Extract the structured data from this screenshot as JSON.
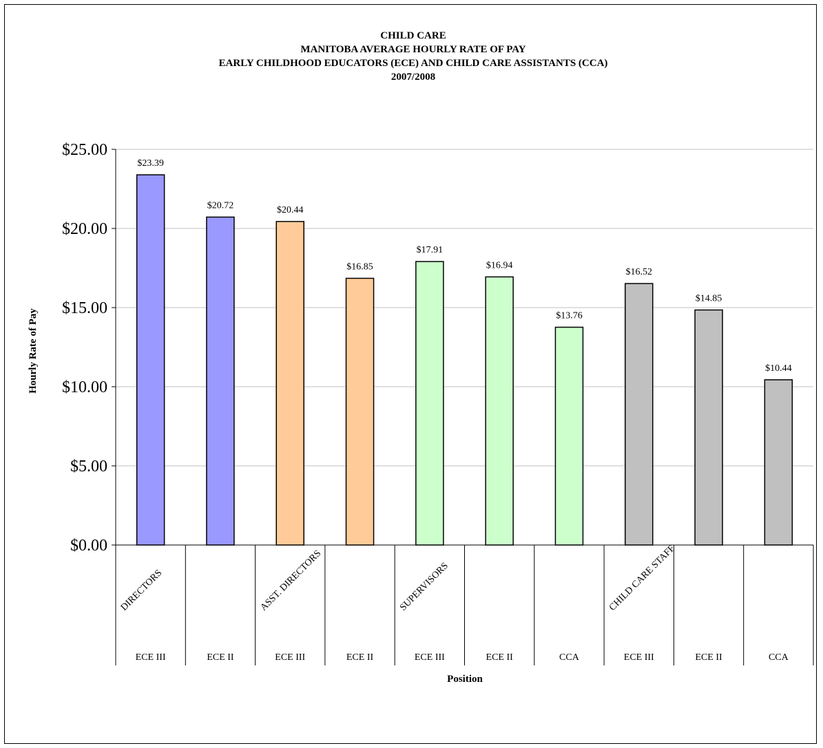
{
  "chart_data": {
    "type": "bar",
    "title_lines": [
      "CHILD CARE",
      "MANITOBA AVERAGE HOURLY RATE OF PAY",
      "EARLY CHILDHOOD EDUCATORS (ECE) AND CHILD CARE ASSISTANTS (CCA)",
      "2007/2008"
    ],
    "ylabel": "Hourly Rate of Pay",
    "xlabel": "Position",
    "ylim": [
      0,
      25
    ],
    "y_ticks": [
      "$0.00",
      "$5.00",
      "$10.00",
      "$15.00",
      "$20.00",
      "$25.00"
    ],
    "grid": true,
    "groups": [
      {
        "name": "DIRECTORS",
        "span": 2
      },
      {
        "name": "ASST. DIRECTORS",
        "span": 2
      },
      {
        "name": "SUPERVISORS",
        "span": 3
      },
      {
        "name": "CHILD CARE STAFF",
        "span": 3
      }
    ],
    "categories": [
      "ECE III",
      "ECE II",
      "ECE III",
      "ECE II",
      "ECE III",
      "ECE II",
      "CCA",
      "ECE III",
      "ECE II",
      "CCA"
    ],
    "values": [
      23.39,
      20.72,
      20.44,
      16.85,
      17.91,
      16.94,
      13.76,
      16.52,
      14.85,
      10.44
    ],
    "value_labels": [
      "$23.39",
      "$20.72",
      "$20.44",
      "$16.85",
      "$17.91",
      "$16.94",
      "$13.76",
      "$16.52",
      "$14.85",
      "$10.44"
    ],
    "colors": [
      "#9999ff",
      "#9999ff",
      "#ffcc99",
      "#ffcc99",
      "#ccffcc",
      "#ccffcc",
      "#ccffcc",
      "#c0c0c0",
      "#c0c0c0",
      "#c0c0c0"
    ]
  }
}
